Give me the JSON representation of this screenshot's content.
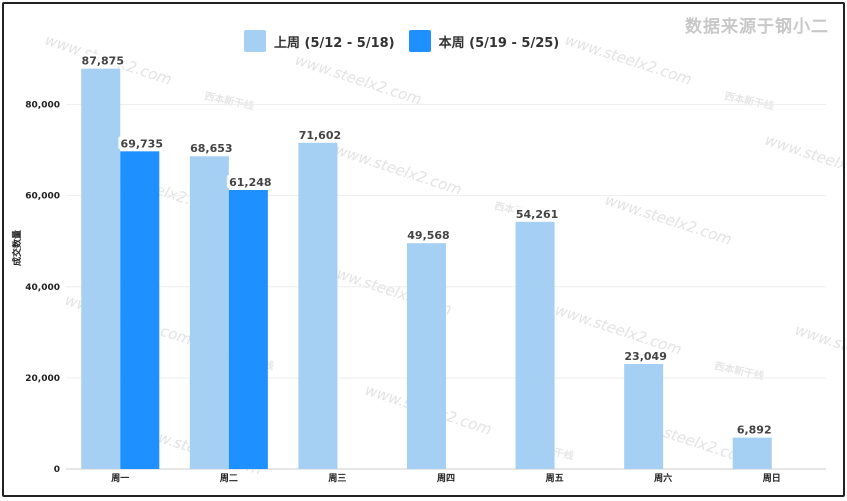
{
  "source_label": "数据来源于钢小二",
  "watermark_text": "www.steelx2.com",
  "watermark_logo_text": "西本新干线",
  "chart_data": {
    "type": "bar",
    "categories": [
      "周一",
      "周二",
      "周三",
      "周四",
      "周五",
      "周六",
      "周日"
    ],
    "series": [
      {
        "name": "上周 (5/12 - 5/18)",
        "color": "#a5cff3",
        "values": [
          87875,
          68653,
          71602,
          49568,
          54261,
          23049,
          6892
        ]
      },
      {
        "name": "本周 (5/19 - 5/25)",
        "color": "#1e90ff",
        "values": [
          69735,
          61248,
          null,
          null,
          null,
          null,
          null
        ]
      }
    ],
    "ylabel": "成交数量",
    "xlabel": "",
    "ylim": [
      0,
      90000
    ],
    "yticks": [
      0,
      20000,
      40000,
      60000,
      80000
    ],
    "ytick_labels": [
      "0",
      "20,000",
      "40,000",
      "60,000",
      "80,000"
    ],
    "data_labels": [
      [
        "87,875",
        "68,653",
        "71,602",
        "49,568",
        "54,261",
        "23,049",
        "6,892"
      ],
      [
        "69,735",
        "61,248",
        null,
        null,
        null,
        null,
        null
      ]
    ],
    "grid": true,
    "legend_position": "top"
  }
}
